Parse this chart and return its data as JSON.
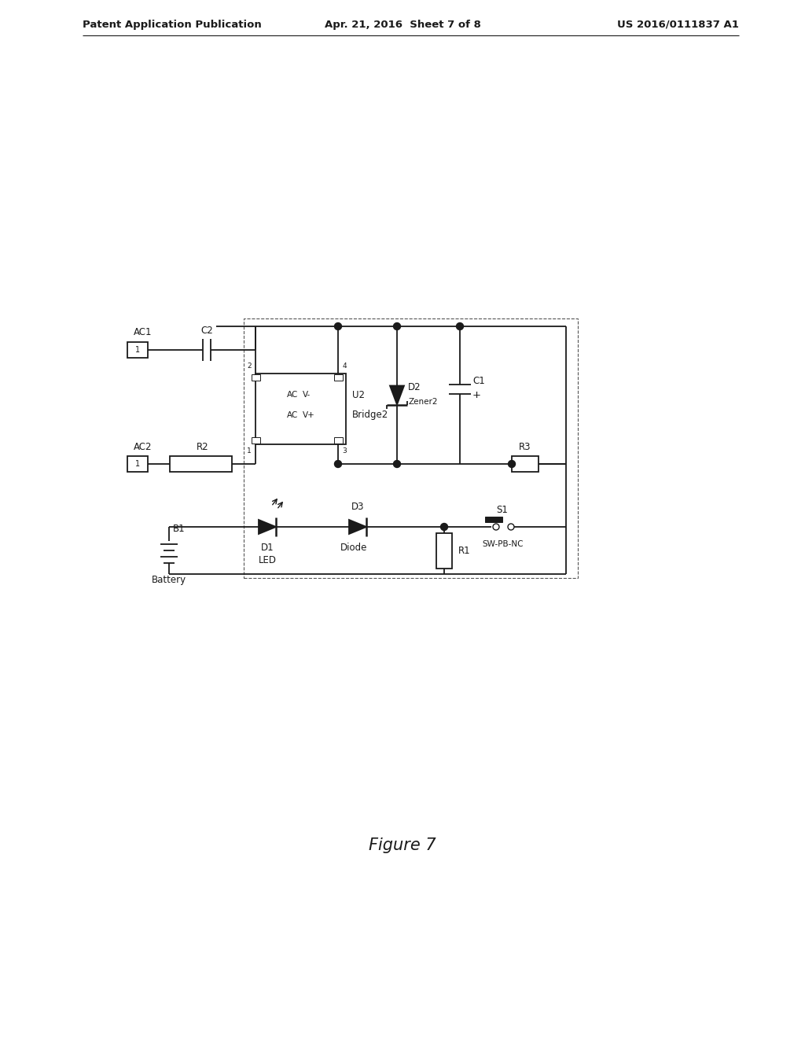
{
  "header_left": "Patent Application Publication",
  "header_center": "Apr. 21, 2016  Sheet 7 of 8",
  "header_right": "US 2016/0111837 A1",
  "figure_label": "Figure 7",
  "background_color": "#ffffff",
  "line_color": "#1a1a1a",
  "text_color": "#1a1a1a",
  "header_fontsize": 9.5,
  "label_fontsize": 8.5,
  "small_fontsize": 7.5,
  "figure_label_fontsize": 15
}
